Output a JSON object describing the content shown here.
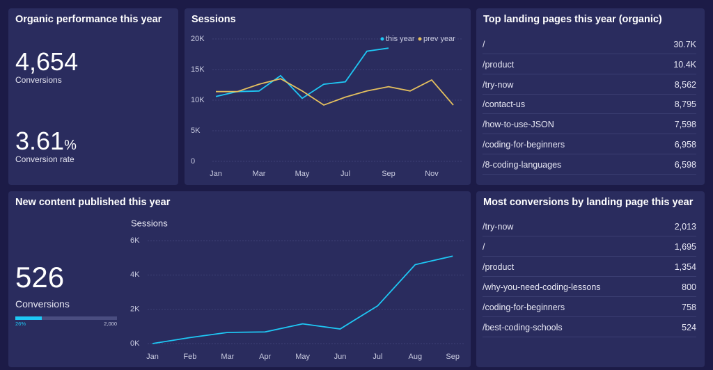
{
  "organic": {
    "title": "Organic performance this year",
    "conversions": {
      "value": "4,654",
      "label": "Conversions"
    },
    "rate": {
      "value": "3.61",
      "unit": "%",
      "label": "Conversion rate"
    }
  },
  "sessions": {
    "type": "line",
    "title": "Sessions",
    "categories": [
      "Jan",
      null,
      "Mar",
      null,
      "May",
      null,
      "Jul",
      null,
      "Sep",
      null,
      "Nov",
      null
    ],
    "series": [
      {
        "name": "this year",
        "color": "#1ec8f5",
        "values": [
          10600,
          11400,
          11500,
          14000,
          10300,
          12600,
          13000,
          18000,
          18500,
          null,
          null,
          null
        ]
      },
      {
        "name": "prev year",
        "color": "#e5c05e",
        "values": [
          11400,
          11400,
          12600,
          13500,
          11500,
          9200,
          10500,
          11500,
          12200,
          11500,
          13300,
          9200
        ]
      }
    ],
    "ylim": [
      0,
      20000
    ],
    "yticks": [
      0,
      {
        "value": 5000,
        "label": "5K"
      },
      {
        "value": 10000,
        "label": "10K"
      },
      {
        "value": 15000,
        "label": "15K"
      },
      {
        "value": 20000,
        "label": "20K"
      }
    ],
    "grid": true
  },
  "top_pages": {
    "title": "Top landing pages this year (organic)",
    "rows": [
      [
        "/",
        "30.7K"
      ],
      [
        "/product",
        "10.4K"
      ],
      [
        "/try-now",
        "8,562"
      ],
      [
        "/contact-us",
        "8,795"
      ],
      [
        "/how-to-use-JSON",
        "7,598"
      ],
      [
        "/coding-for-beginners",
        "6,958"
      ],
      [
        "/8-coding-languages",
        "6,598"
      ]
    ]
  },
  "new_content": {
    "title": "New content published this year",
    "conversions": {
      "value": "526",
      "label": "Conversions"
    },
    "progress": {
      "value": 26,
      "label": "26%",
      "max_label": "2,000"
    },
    "chart": {
      "type": "line",
      "title": "Sessions",
      "categories": [
        "Jan",
        "Feb",
        "Mar",
        "Apr",
        "May",
        "Jun",
        "Jul",
        "Aug",
        "Sep"
      ],
      "series": [
        {
          "color": "#1ec8f5",
          "values": [
            0,
            350,
            650,
            680,
            1150,
            850,
            2200,
            4600,
            5100
          ]
        }
      ],
      "ylim": [
        0,
        6000
      ],
      "yticks": [
        {
          "value": 0,
          "label": "0K"
        },
        {
          "value": 2000,
          "label": "2K"
        },
        {
          "value": 4000,
          "label": "4K"
        },
        {
          "value": 6000,
          "label": "6K"
        }
      ],
      "grid": true
    }
  },
  "conversions_pages": {
    "title": "Most conversions by landing page this year",
    "rows": [
      [
        "/try-now",
        "2,013"
      ],
      [
        "/",
        "1,695"
      ],
      [
        "/product",
        "1,354"
      ],
      [
        "/why-you-need-coding-lessons",
        "800"
      ],
      [
        "/coding-for-beginners",
        "758"
      ],
      [
        "/best-coding-schools",
        "524"
      ]
    ]
  }
}
